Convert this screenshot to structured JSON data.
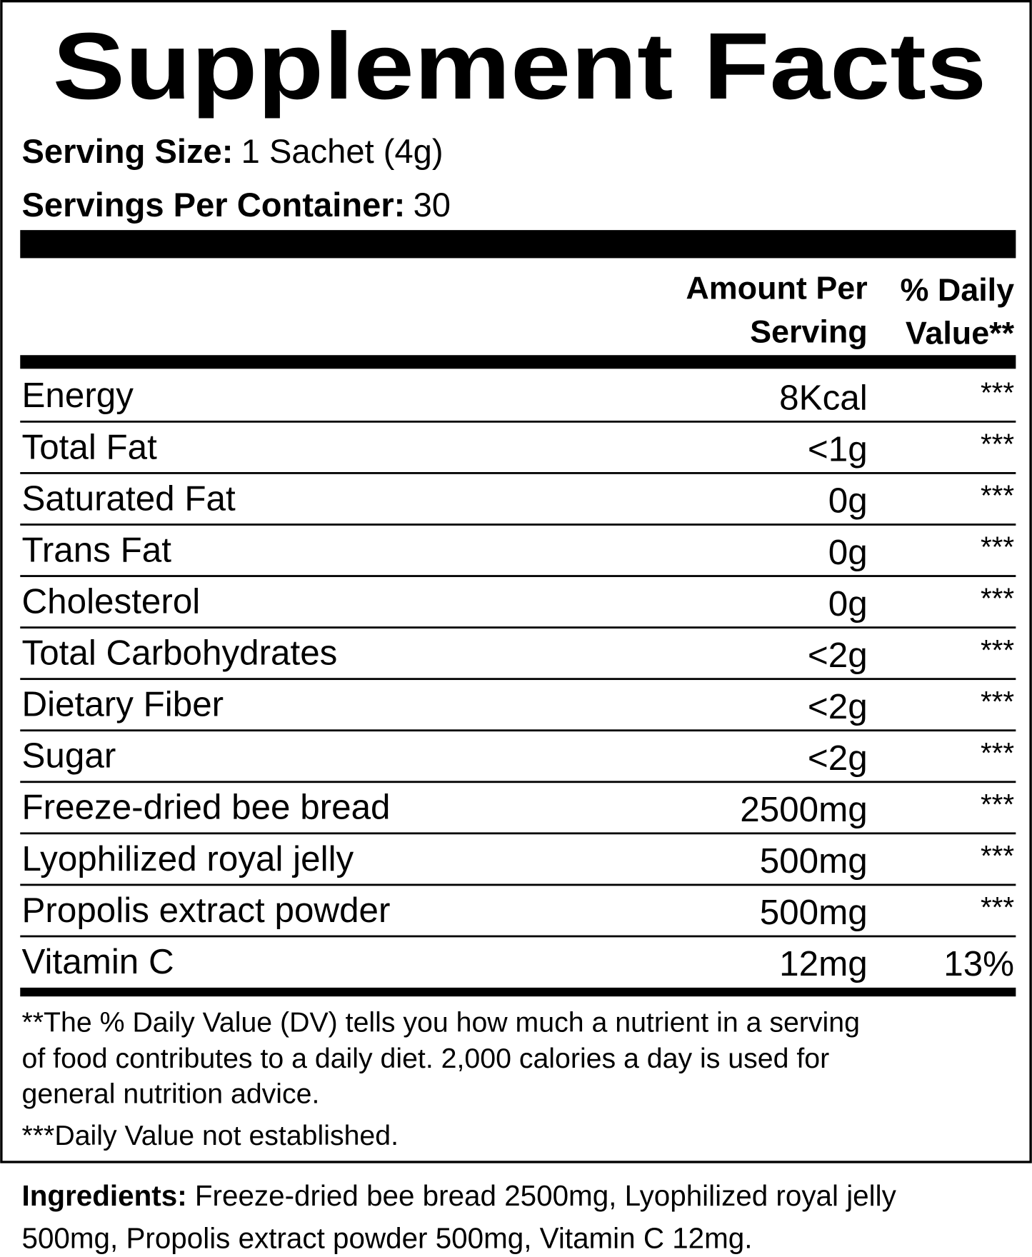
{
  "header": {
    "title": "Supplement Facts"
  },
  "serving_size": {
    "label": "Serving Size:",
    "value": "1 Sachet (4g)"
  },
  "servings_per_container": {
    "label": "Servings Per Container:",
    "value": "30"
  },
  "columns": {
    "amount": [
      "Amount Per",
      "Serving"
    ],
    "daily_value": [
      "% Daily",
      "Value**"
    ]
  },
  "rows": [
    [
      "Energy",
      "8Kcal",
      "***"
    ],
    [
      "Total Fat",
      "<1g",
      "***"
    ],
    [
      "Saturated Fat",
      "0g",
      "***"
    ],
    [
      "Trans Fat",
      "0g",
      "***"
    ],
    [
      "Cholesterol",
      "0g",
      "***"
    ],
    [
      "Total Carbohydrates",
      "<2g",
      "***"
    ],
    [
      "Dietary Fiber",
      "<2g",
      "***"
    ],
    [
      "Sugar",
      "<2g",
      "***"
    ],
    [
      "Freeze-dried bee bread",
      "2500mg",
      "***"
    ],
    [
      "Lyophilized royal jelly",
      "500mg",
      "***"
    ],
    [
      "Propolis extract powder",
      "500mg",
      "***"
    ],
    [
      "Vitamin C",
      "12mg",
      "13%"
    ]
  ],
  "footnotes": {
    "daily_value_note": [
      "**The % Daily Value (DV) tells you how much a nutrient in a serving",
      "of food contributes to a daily diet. 2,000 calories a day is used for",
      "general nutrition advice."
    ],
    "not_established": "***Daily Value not established."
  },
  "ingredients": {
    "label": "Ingredients:",
    "lines": [
      "Freeze-dried bee bread 2500mg, Lyophilized royal jelly",
      "500mg, Propolis extract powder 500mg, Vitamin C 12mg."
    ]
  }
}
